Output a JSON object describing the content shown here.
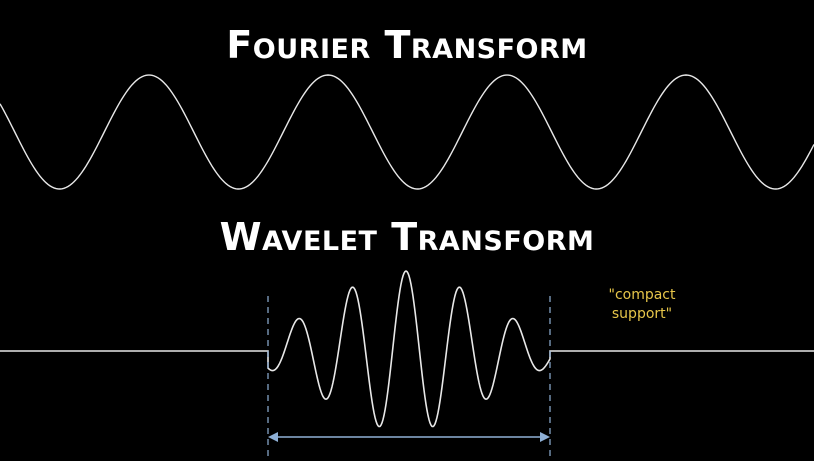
{
  "titles": {
    "fourier": "Fourier Transform",
    "wavelet": "Wavelet Transform"
  },
  "annotation": {
    "line1": "\"compact",
    "line2": "support\""
  },
  "colors": {
    "background": "#000000",
    "wave": "#e8e8e8",
    "guide_lines": "#8fb0d6",
    "annotation": "#e7c64a"
  }
}
